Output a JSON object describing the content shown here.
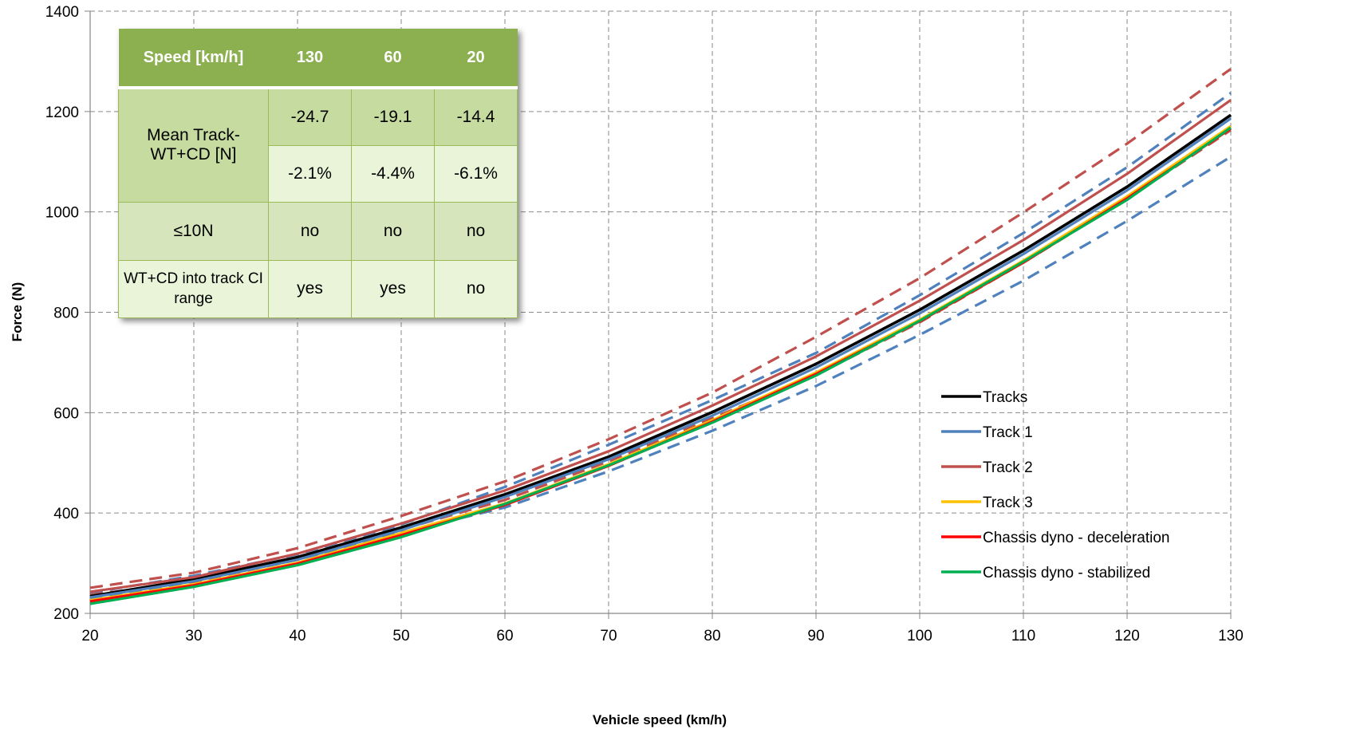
{
  "chart_data": {
    "type": "line",
    "xlabel": "Vehicle speed (km/h)",
    "ylabel": "Force (N)",
    "xlim": [
      20,
      130
    ],
    "ylim": [
      200,
      1400
    ],
    "x_ticks": [
      20,
      30,
      40,
      50,
      60,
      70,
      80,
      90,
      100,
      110,
      120,
      130
    ],
    "y_ticks": [
      200,
      400,
      600,
      800,
      1000,
      1200,
      1400
    ],
    "grid": "dashed",
    "legend_position": "bottom-right",
    "x": [
      20,
      30,
      40,
      50,
      60,
      70,
      80,
      90,
      100,
      110,
      120,
      130
    ],
    "series": [
      {
        "name": "Tracks",
        "color": "#000000",
        "style": "solid",
        "in_legend": true,
        "values": [
          234,
          268,
          312,
          371,
          437,
          512,
          601,
          697,
          805,
          923,
          1050,
          1193
        ]
      },
      {
        "name": "Track 1",
        "color": "#4f81bd",
        "style": "solid",
        "in_legend": true,
        "values": [
          232,
          264,
          307,
          366,
          432,
          507,
          594,
          690,
          798,
          916,
          1043,
          1186
        ]
      },
      {
        "name": "Track 2",
        "color": "#c0504d",
        "style": "solid",
        "in_legend": true,
        "values": [
          243,
          272,
          319,
          379,
          445,
          523,
          614,
          712,
          823,
          944,
          1076,
          1223
        ]
      },
      {
        "name": "Track 3",
        "color": "#ffc000",
        "style": "solid",
        "in_legend": true,
        "values": [
          226,
          258,
          301,
          360,
          419,
          497,
          585,
          680,
          785,
          903,
          1031,
          1171
        ]
      },
      {
        "name": "Chassis dyno - deceleration",
        "color": "#ff0000",
        "style": "solid",
        "in_legend": true,
        "values": [
          224,
          256,
          299,
          356,
          416,
          494,
          582,
          677,
          782,
          899,
          1027,
          1166
        ]
      },
      {
        "name": "Chassis dyno - stabilized",
        "color": "#00b050",
        "style": "solid",
        "in_legend": true,
        "values": [
          219,
          253,
          296,
          352,
          418,
          495,
          580,
          674,
          783,
          901,
          1024,
          1168
        ]
      },
      {
        "name": "",
        "color": "#4f81bd",
        "style": "dashed",
        "in_legend": false,
        "values": [
          241,
          275,
          318,
          377,
          452,
          536,
          625,
          719,
          834,
          958,
          1089,
          1237
        ]
      },
      {
        "name": "",
        "color": "#4f81bd",
        "style": "dashed",
        "in_legend": false,
        "values": [
          227,
          264,
          307,
          361,
          411,
          483,
          564,
          653,
          755,
          863,
          982,
          1110
        ]
      },
      {
        "name": "",
        "color": "#c0504d",
        "style": "dashed",
        "in_legend": false,
        "values": [
          251,
          281,
          330,
          394,
          463,
          547,
          640,
          751,
          868,
          999,
          1136,
          1285
        ]
      },
      {
        "name": "",
        "color": "#c0504d",
        "style": "dashed",
        "in_legend": false,
        "values": [
          237,
          263,
          307,
          367,
          426,
          503,
          589,
          675,
          780,
          899,
          1026,
          1163
        ]
      }
    ]
  },
  "table": {
    "header": [
      "Speed [km/h]",
      "130",
      "60",
      "20"
    ],
    "mean_label": "Mean Track-WT+CD [N]",
    "mean_abs": [
      "-24.7",
      "-19.1",
      "-14.4"
    ],
    "mean_pct": [
      "-2.1%",
      "-4.4%",
      "-6.1%"
    ],
    "le10_label": "≤10N",
    "le10_values": [
      "no",
      "no",
      "no"
    ],
    "ci_label": "WT+CD into track CI range",
    "ci_values": [
      "yes",
      "yes",
      "no"
    ]
  }
}
